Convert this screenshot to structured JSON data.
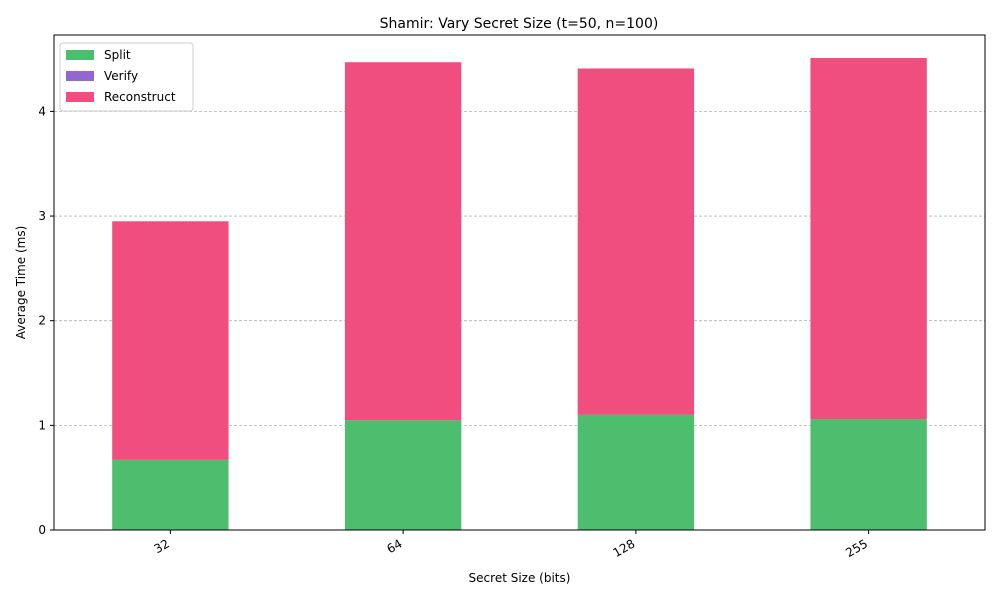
{
  "chart_data": {
    "type": "bar",
    "stacked": true,
    "title": "Shamir: Vary Secret Size (t=50, n=100)",
    "xlabel": "Secret Size (bits)",
    "ylabel": "Average Time (ms)",
    "categories": [
      "32",
      "64",
      "128",
      "255"
    ],
    "ylim": [
      0,
      4.73
    ],
    "yticks": [
      0,
      1,
      2,
      3,
      4
    ],
    "grid": "y-dashed",
    "legend_position": "top-left",
    "series": [
      {
        "name": "Split",
        "color": "#4dbd6e",
        "values": [
          0.67,
          1.05,
          1.1,
          1.06
        ]
      },
      {
        "name": "Verify",
        "color": "#9467d0",
        "values": [
          0.0,
          0.0,
          0.0,
          0.0
        ]
      },
      {
        "name": "Reconstruct",
        "color": "#f04e7e",
        "values": [
          2.28,
          3.42,
          3.31,
          3.45
        ]
      }
    ]
  }
}
